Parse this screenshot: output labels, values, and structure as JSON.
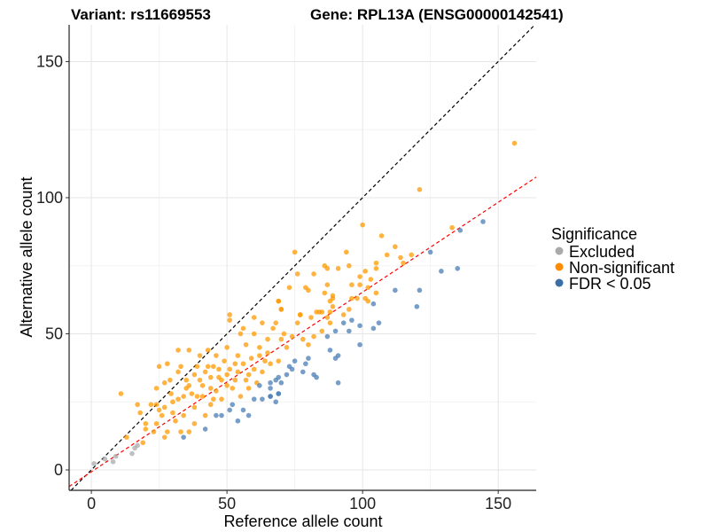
{
  "chart_data": {
    "type": "scatter",
    "title_left": "Variant: rs11669553",
    "title_right": "Gene: RPL13A (ENSG00000142541)",
    "xlabel": "Reference allele count",
    "ylabel": "Alternative allele count",
    "xlim": [
      -8.2,
      164
    ],
    "ylim": [
      -7.5,
      163.5
    ],
    "x_ticks": [
      0,
      50,
      100,
      150
    ],
    "y_ticks": [
      0,
      50,
      100,
      150
    ],
    "minor_ticks": [
      25,
      75,
      125
    ],
    "grid": true,
    "reference_line": {
      "label": "y = x",
      "slope": 1,
      "intercept": 0,
      "color": "#000000"
    },
    "fit_line": {
      "slope": 0.66,
      "intercept": -0.7,
      "color": "#FF0000"
    },
    "legend": {
      "title": "Significance",
      "position": "right",
      "entries": [
        {
          "label": "Excluded",
          "color": "#AAAAAA"
        },
        {
          "label": "Non-significant",
          "color": "#FF8C00"
        },
        {
          "label": "FDR < 0.05",
          "color": "#3A6EA5"
        }
      ]
    },
    "series": [
      {
        "name": "Excluded",
        "color": "#AAAAAA",
        "points": [
          [
            1,
            2.3
          ],
          [
            5,
            4
          ],
          [
            8,
            3
          ],
          [
            9,
            5
          ],
          [
            15,
            6
          ],
          [
            16,
            8
          ],
          [
            17,
            9
          ]
        ]
      },
      {
        "name": "Non-significant",
        "color": "#FF9900",
        "points": [
          [
            10.9,
            28
          ],
          [
            13,
            12
          ],
          [
            17,
            24
          ],
          [
            18,
            21
          ],
          [
            19,
            10
          ],
          [
            20,
            17
          ],
          [
            20,
            15
          ],
          [
            22,
            24
          ],
          [
            23,
            14
          ],
          [
            24,
            30
          ],
          [
            24,
            24
          ],
          [
            24,
            17
          ],
          [
            25,
            38
          ],
          [
            25,
            22
          ],
          [
            26,
            20
          ],
          [
            27,
            12
          ],
          [
            27,
            32
          ],
          [
            28,
            39
          ],
          [
            28,
            14
          ],
          [
            29,
            33
          ],
          [
            29.4,
            28
          ],
          [
            30,
            21
          ],
          [
            31,
            18
          ],
          [
            32,
            44
          ],
          [
            32,
            36
          ],
          [
            32,
            26
          ],
          [
            33,
            14
          ],
          [
            33,
            38
          ],
          [
            34,
            20
          ],
          [
            35,
            33
          ],
          [
            36,
            44
          ],
          [
            36,
            14
          ],
          [
            37,
            28
          ],
          [
            38,
            23
          ],
          [
            38,
            17
          ],
          [
            39,
            38
          ],
          [
            40,
            33
          ],
          [
            40,
            42
          ],
          [
            41,
            27
          ],
          [
            42,
            20
          ],
          [
            42,
            36
          ],
          [
            43,
            44
          ],
          [
            44,
            30
          ],
          [
            44,
            24
          ],
          [
            45,
            38
          ],
          [
            46,
            42
          ],
          [
            47,
            34
          ],
          [
            48,
            26
          ],
          [
            49,
            40
          ],
          [
            50,
            31
          ],
          [
            50,
            45
          ],
          [
            51,
            37
          ],
          [
            51,
            57
          ],
          [
            51,
            55
          ],
          [
            53,
            33
          ],
          [
            54,
            42
          ],
          [
            55,
            50
          ],
          [
            55,
            27
          ],
          [
            56,
            52
          ],
          [
            57,
            46
          ],
          [
            58,
            35
          ],
          [
            59,
            41
          ],
          [
            60,
            50
          ],
          [
            60,
            56
          ],
          [
            61,
            32
          ],
          [
            62,
            45
          ],
          [
            63,
            54
          ],
          [
            64,
            40
          ],
          [
            65,
            48
          ],
          [
            65,
            43
          ],
          [
            67,
            52
          ],
          [
            68,
            54
          ],
          [
            69,
            40
          ],
          [
            69,
            62
          ],
          [
            70,
            59
          ],
          [
            70,
            48
          ],
          [
            71,
            50
          ],
          [
            72,
            45
          ],
          [
            74,
            49
          ],
          [
            76,
            54
          ],
          [
            77,
            57
          ],
          [
            78,
            48
          ],
          [
            80,
            46
          ],
          [
            81,
            56
          ],
          [
            82,
            49
          ],
          [
            84,
            58
          ],
          [
            85,
            51
          ],
          [
            87,
            56
          ],
          [
            88,
            54
          ],
          [
            89,
            63
          ],
          [
            89,
            60
          ],
          [
            156,
            120
          ],
          [
            121,
            103
          ],
          [
            100,
            90
          ],
          [
            107,
            86
          ],
          [
            112,
            82
          ],
          [
            109,
            79
          ],
          [
            114,
            78
          ],
          [
            118,
            79
          ],
          [
            115,
            76
          ],
          [
            133,
            89
          ],
          [
            75,
            80
          ],
          [
            94,
            80
          ],
          [
            86,
            75
          ],
          [
            87,
            74
          ],
          [
            91,
            74
          ],
          [
            95,
            75
          ],
          [
            76,
            72
          ],
          [
            82,
            72
          ],
          [
            105,
            76
          ],
          [
            105,
            74
          ],
          [
            101,
            73
          ],
          [
            99,
            71
          ],
          [
            103,
            70
          ],
          [
            73,
            67
          ],
          [
            79,
            67
          ],
          [
            80,
            66
          ],
          [
            87,
            68
          ],
          [
            96,
            68
          ],
          [
            99,
            68
          ],
          [
            102,
            67
          ],
          [
            86,
            65
          ],
          [
            89,
            64
          ],
          [
            105,
            65
          ],
          [
            69,
            62
          ],
          [
            88,
            62
          ],
          [
            96,
            63
          ],
          [
            98,
            63
          ],
          [
            101,
            63
          ],
          [
            102,
            62
          ],
          [
            70,
            59
          ],
          [
            95,
            59
          ],
          [
            88,
            58
          ],
          [
            83,
            58
          ],
          [
            77,
            57
          ],
          [
            85,
            58
          ],
          [
            93,
            57
          ],
          [
            35,
            30
          ],
          [
            38,
            35
          ],
          [
            41,
            31
          ],
          [
            43,
            38
          ],
          [
            46,
            29
          ],
          [
            48,
            33
          ],
          [
            52,
            30
          ],
          [
            54,
            36
          ],
          [
            56,
            39
          ],
          [
            58,
            30
          ],
          [
            44,
            34
          ],
          [
            47,
            37
          ],
          [
            50,
            35
          ],
          [
            53,
            39
          ],
          [
            39,
            27
          ],
          [
            36,
            31
          ],
          [
            34,
            27
          ],
          [
            30,
            25
          ],
          [
            27,
            23
          ],
          [
            45,
            26
          ],
          [
            57,
            33
          ],
          [
            60,
            37
          ],
          [
            63,
            36
          ],
          [
            66,
            39
          ],
          [
            62,
            42
          ]
        ]
      },
      {
        "name": "FDR < 0.05",
        "color": "#4A7DB5",
        "points": [
          [
            144.4,
            91.2
          ],
          [
            136,
            88
          ],
          [
            125,
            80
          ],
          [
            129,
            73
          ],
          [
            135,
            74
          ],
          [
            112,
            66
          ],
          [
            121,
            66
          ],
          [
            120,
            60
          ],
          [
            104,
            61
          ],
          [
            106,
            54
          ],
          [
            104,
            52
          ],
          [
            99,
            53
          ],
          [
            99,
            46
          ],
          [
            96,
            55
          ],
          [
            93,
            54
          ],
          [
            95,
            51
          ],
          [
            90,
            51
          ],
          [
            87,
            49
          ],
          [
            88,
            44
          ],
          [
            91,
            42
          ],
          [
            90,
            41
          ],
          [
            91,
            32
          ],
          [
            82,
            35
          ],
          [
            83,
            34
          ],
          [
            80,
            41
          ],
          [
            79,
            39
          ],
          [
            78,
            36
          ],
          [
            75,
            40
          ],
          [
            74,
            37
          ],
          [
            73,
            38
          ],
          [
            72,
            35
          ],
          [
            70,
            32
          ],
          [
            69,
            34
          ],
          [
            68,
            33
          ],
          [
            66,
            32
          ],
          [
            66,
            30
          ],
          [
            69,
            28
          ],
          [
            66,
            27
          ],
          [
            34,
            12
          ],
          [
            42,
            15
          ],
          [
            46,
            20
          ],
          [
            48,
            20
          ],
          [
            51,
            22
          ],
          [
            54,
            18
          ],
          [
            56,
            22
          ],
          [
            58,
            20
          ],
          [
            60,
            26
          ],
          [
            63,
            26
          ],
          [
            62,
            31
          ],
          [
            66,
            27
          ],
          [
            68,
            25
          ],
          [
            69,
            28
          ],
          [
            52,
            24
          ]
        ]
      }
    ]
  }
}
